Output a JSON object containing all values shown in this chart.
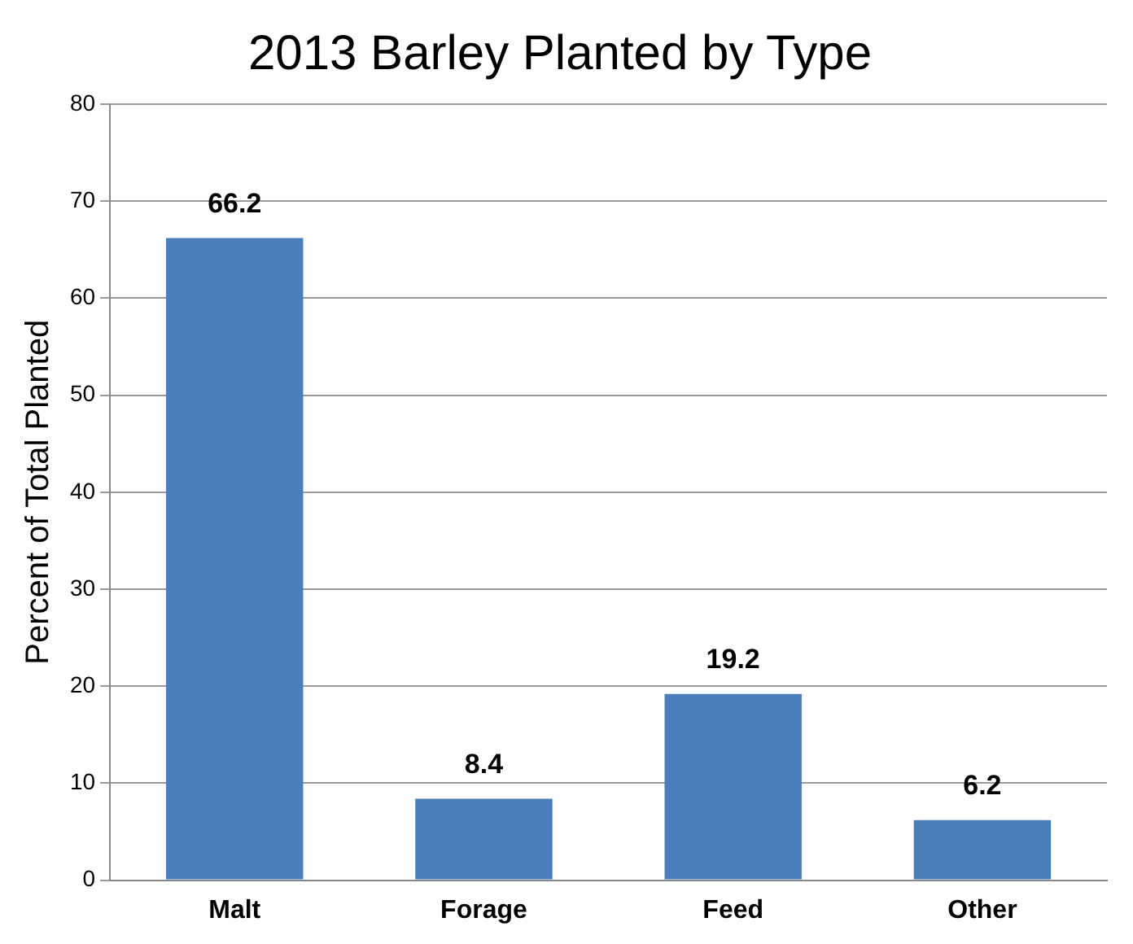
{
  "chart_data": {
    "type": "bar",
    "title": "2013 Barley Planted by Type",
    "ylabel": "Percent of Total Planted",
    "categories": [
      "Malt",
      "Forage",
      "Feed",
      "Other"
    ],
    "values": [
      66.2,
      8.4,
      19.2,
      6.2
    ],
    "color": "#4a7ebb",
    "ylim": [
      0,
      80
    ],
    "yticks": [
      0,
      10,
      20,
      30,
      40,
      50,
      60,
      70,
      80
    ],
    "grid": "y",
    "data_labels": true
  }
}
